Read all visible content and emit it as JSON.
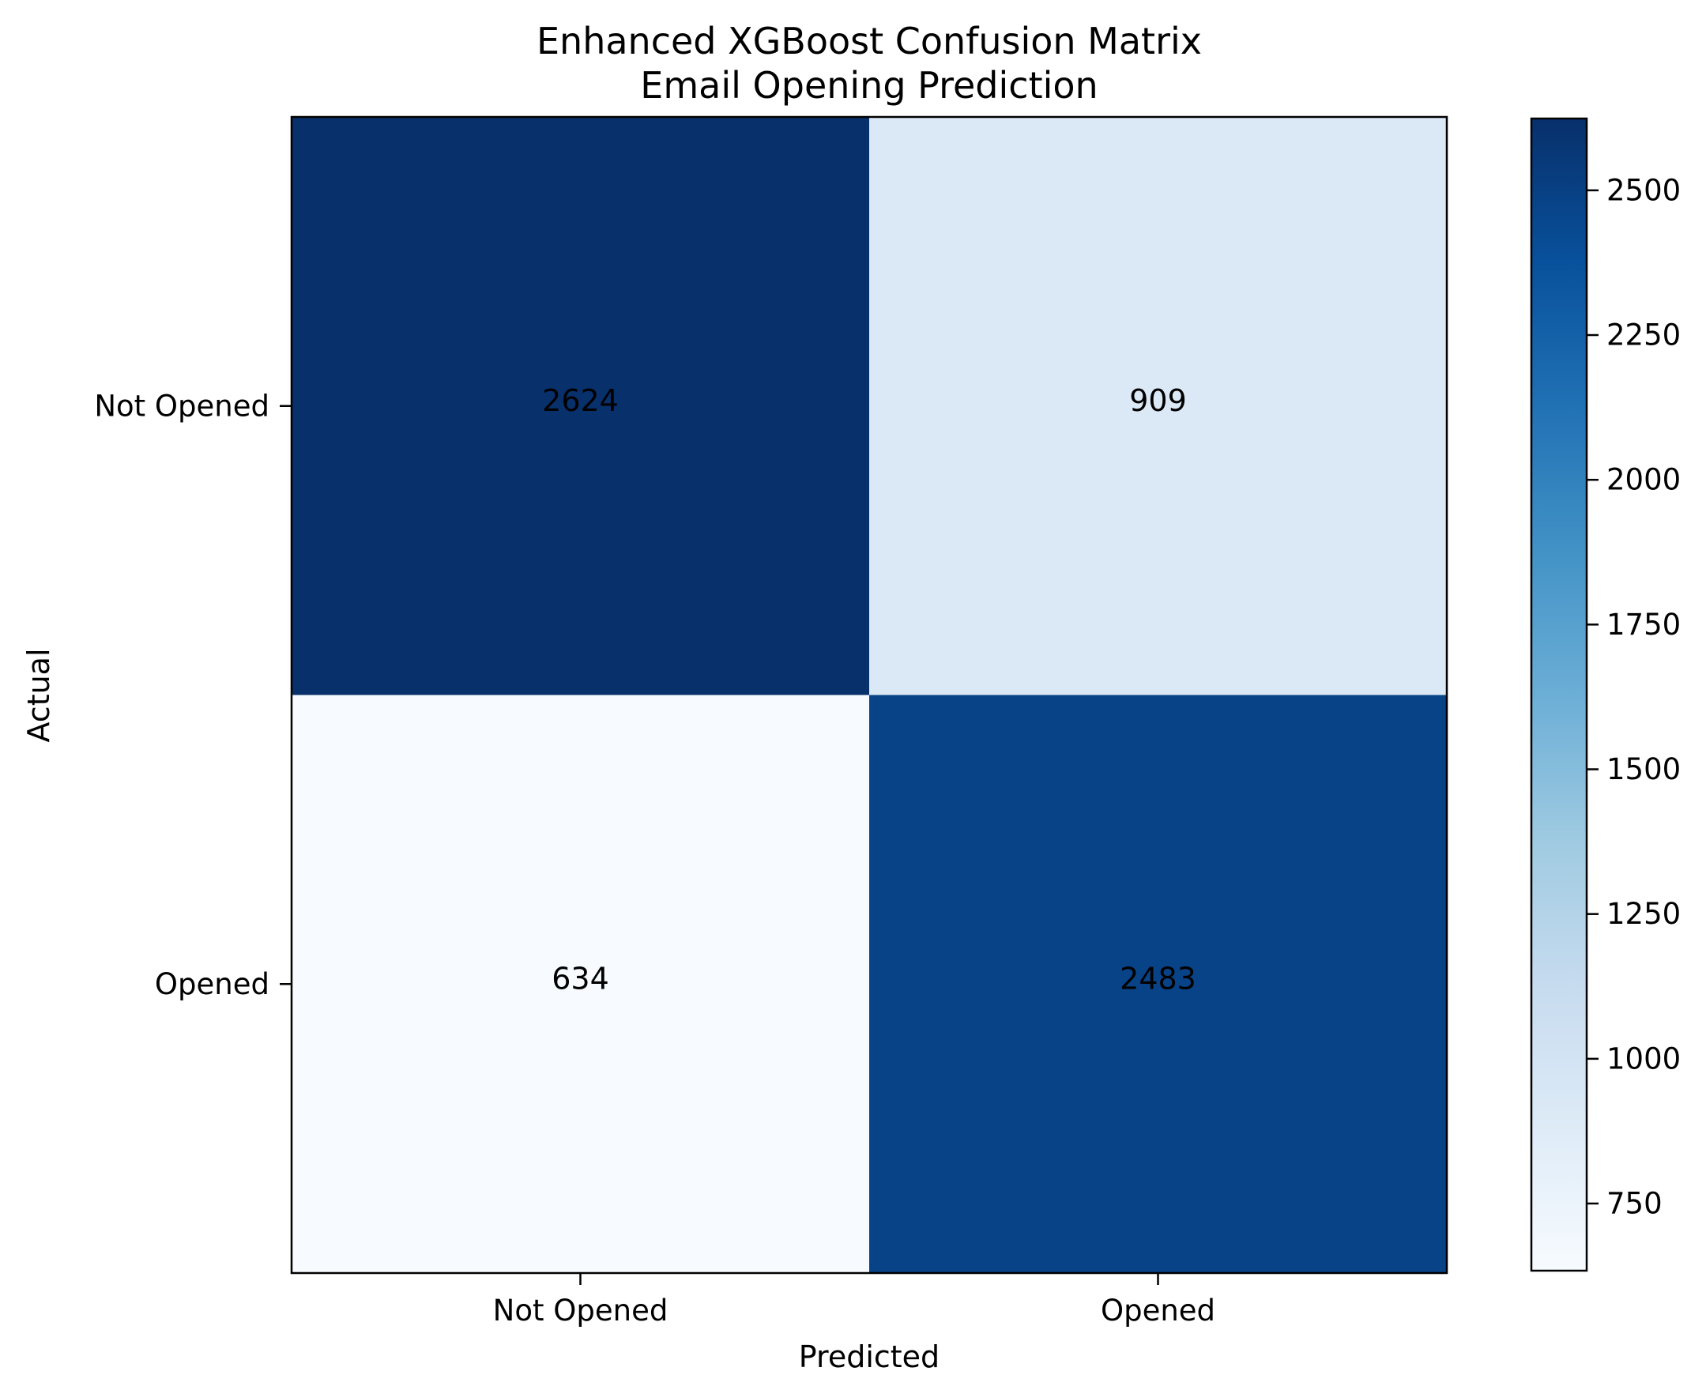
{
  "chart_data": {
    "type": "heatmap",
    "title": "Enhanced XGBoost Confusion Matrix",
    "subtitle": "Email Opening Prediction",
    "xlabel": "Predicted",
    "ylabel": "Actual",
    "x_categories": [
      "Not Opened",
      "Opened"
    ],
    "y_categories": [
      "Not Opened",
      "Opened"
    ],
    "values": [
      [
        2624,
        909
      ],
      [
        634,
        2483
      ]
    ],
    "colormap": "Blues",
    "colorbar": {
      "min": 634,
      "max": 2624,
      "ticks": [
        750,
        1000,
        1250,
        1500,
        1750,
        2000,
        2250,
        2500
      ]
    },
    "grid": false
  }
}
